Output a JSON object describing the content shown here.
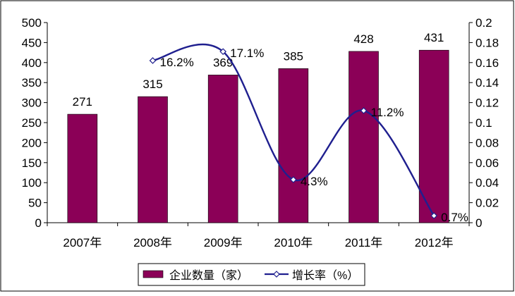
{
  "chart_data": {
    "type": "bar",
    "categories": [
      "2007年",
      "2008年",
      "2009年",
      "2010年",
      "2011年",
      "2012年"
    ],
    "series": [
      {
        "name": "企业数量（家）",
        "type": "bar",
        "axis": "left",
        "color": "#8B0057",
        "values": [
          271,
          315,
          369,
          385,
          428,
          431
        ],
        "labels": [
          "271",
          "315",
          "369",
          "385",
          "428",
          "431"
        ]
      },
      {
        "name": "增长率（%）",
        "type": "line",
        "axis": "right",
        "color": "#1F1F8F",
        "values": [
          null,
          0.162,
          0.171,
          0.043,
          0.112,
          0.007
        ],
        "labels": [
          "",
          "16.2%",
          "17.1%",
          "4.3%",
          "11.2%",
          "0.7%"
        ]
      }
    ],
    "y_left": {
      "range": [
        0,
        500
      ],
      "ticks": [
        "0",
        "50",
        "100",
        "150",
        "200",
        "250",
        "300",
        "350",
        "400",
        "450",
        "500"
      ]
    },
    "y_right": {
      "range": [
        0,
        0.2
      ],
      "ticks": [
        "0",
        "0.02",
        "0.04",
        "0.06",
        "0.08",
        "0.1",
        "0.12",
        "0.14",
        "0.16",
        "0.18",
        "0.2"
      ]
    },
    "grid": false,
    "legend_position": "bottom"
  }
}
